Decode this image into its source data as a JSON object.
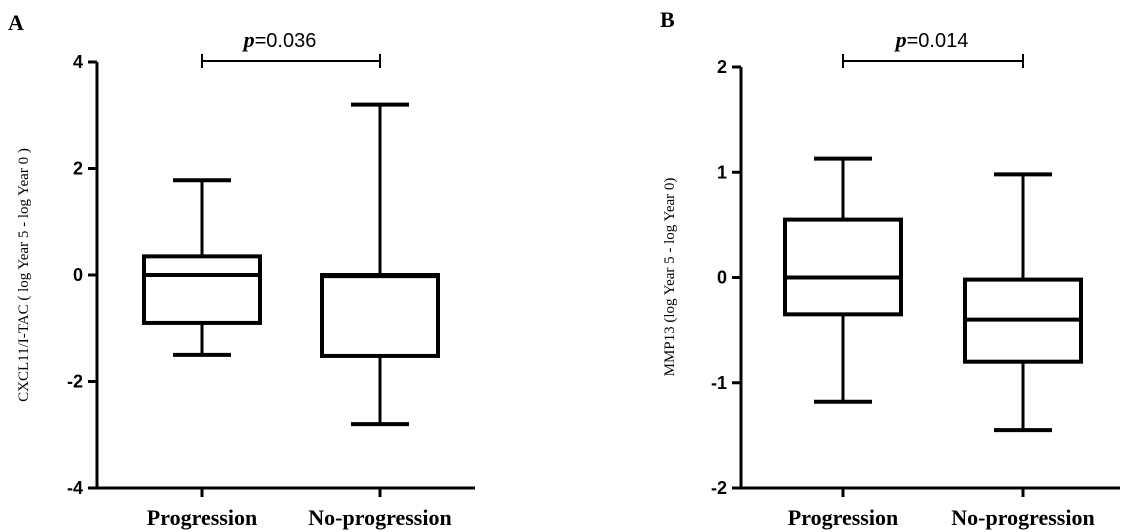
{
  "chart_data": [
    {
      "type": "box",
      "panel": "A",
      "ylabel": "CXCL11/I-TAC ( log Year 5 - log Year 0 )",
      "ylim": [
        -4,
        4
      ],
      "yticks": [
        "4",
        "2",
        "0",
        "-2",
        "-4"
      ],
      "categories": [
        "Progression",
        "No-progression"
      ],
      "boxes": [
        {
          "category": "Progression",
          "min": -1.5,
          "q1": -0.9,
          "median": 0.0,
          "q3": 0.35,
          "max": 1.78
        },
        {
          "category": "No-progression",
          "min": -2.8,
          "q1": -1.52,
          "median": -0.02,
          "q3": 0.0,
          "max": 3.2
        }
      ],
      "annotation": {
        "p_symbol": "p",
        "p_value": "=0.036"
      }
    },
    {
      "type": "box",
      "panel": "B",
      "ylabel": "MMP13 (log Year 5 - log Year 0)",
      "ylim": [
        -2,
        2
      ],
      "yticks": [
        "2",
        "1",
        "0",
        "-1",
        "-2"
      ],
      "categories": [
        "Progression",
        "No-progression"
      ],
      "boxes": [
        {
          "category": "Progression",
          "min": -1.18,
          "q1": -0.35,
          "median": 0.0,
          "q3": 0.55,
          "max": 1.13
        },
        {
          "category": "No-progression",
          "min": -1.45,
          "q1": -0.8,
          "median": -0.4,
          "q3": -0.02,
          "max": 0.98
        }
      ],
      "annotation": {
        "p_symbol": "p",
        "p_value": "=0.014"
      }
    }
  ]
}
